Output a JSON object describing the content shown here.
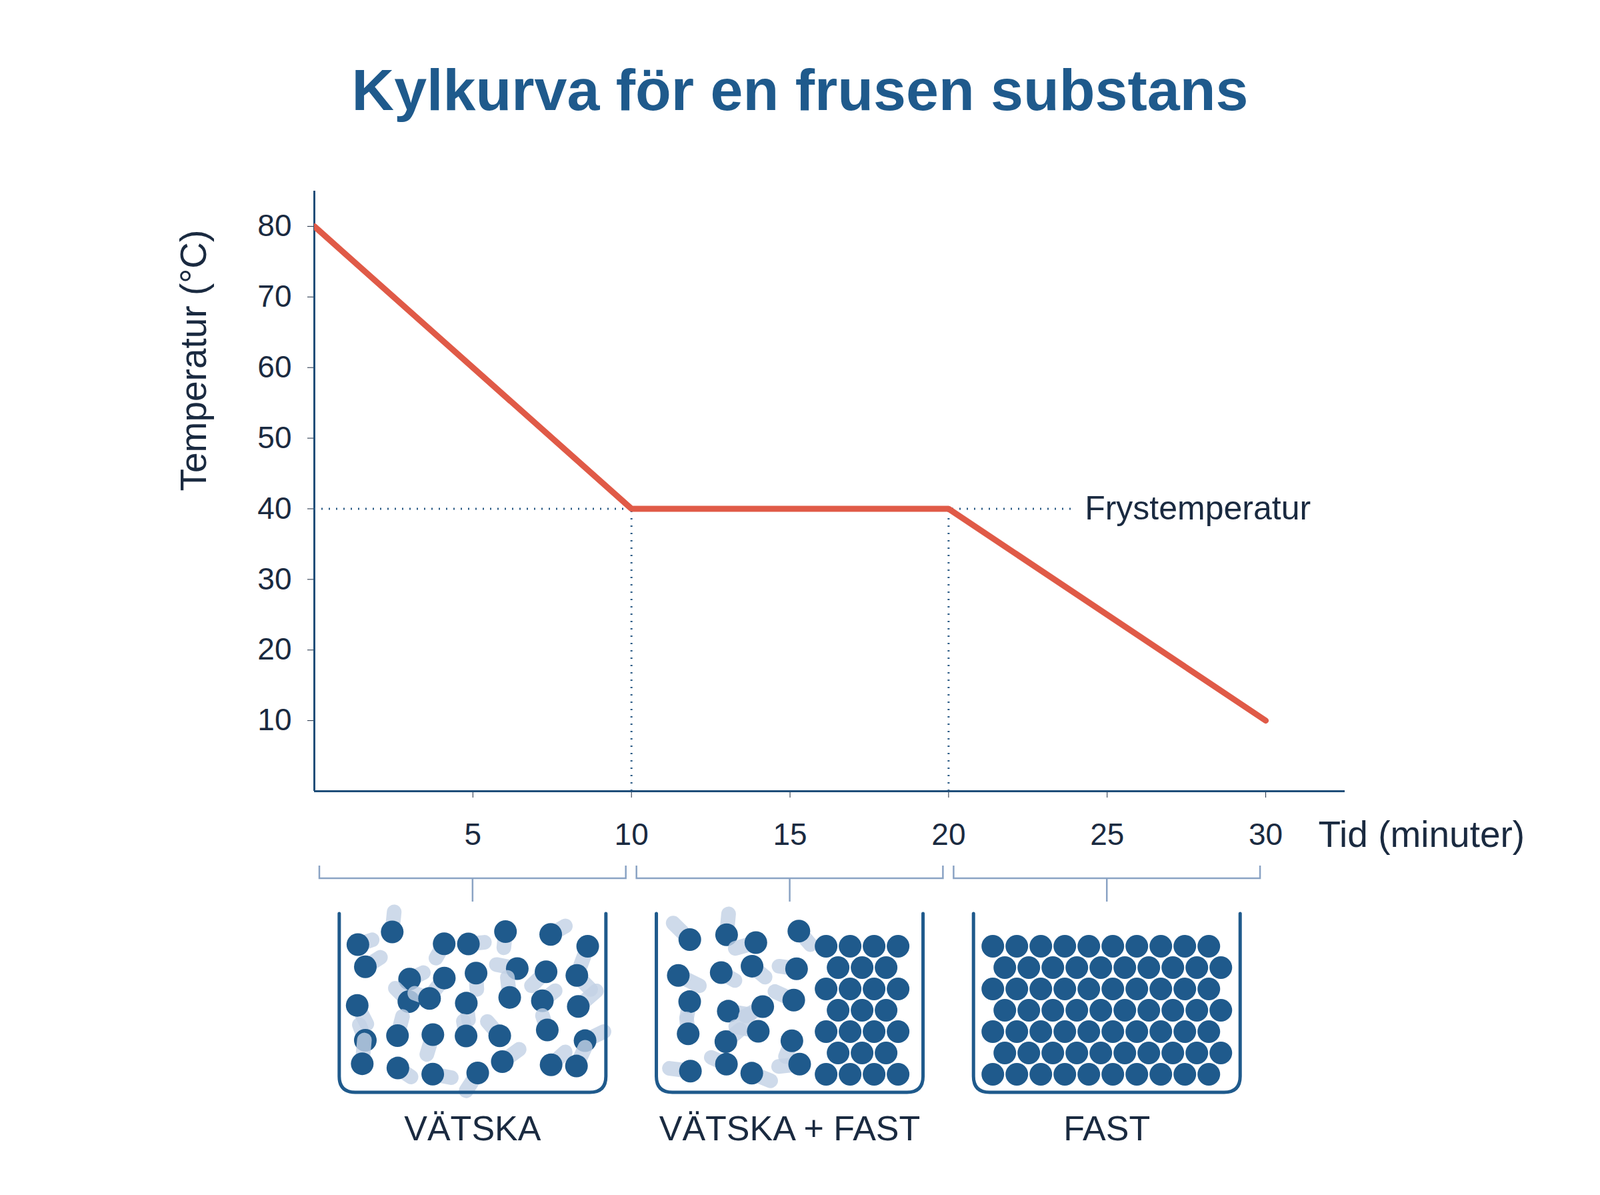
{
  "chart_data": {
    "type": "line",
    "title": "Kylkurva för en frusen substans",
    "x_label": "Tid (minuter)",
    "y_label": "Temperatur (°C)",
    "x": [
      0,
      10,
      20,
      30
    ],
    "values": [
      80,
      40,
      40,
      10
    ],
    "color": "#e05a47",
    "xlim": [
      0,
      32.5
    ],
    "ylim": [
      0,
      85
    ],
    "xticks": [
      5,
      10,
      15,
      20,
      25,
      30
    ],
    "yticks": [
      10,
      20,
      30,
      40,
      50,
      60,
      70,
      80
    ],
    "annotations": [
      {
        "text": "Frystemperatur",
        "x": 24,
        "y": 40
      }
    ],
    "phases": [
      {
        "label": "VÄTSKA",
        "x_range": [
          0,
          10
        ]
      },
      {
        "label": "VÄTSKA + FAST",
        "x_range": [
          10,
          20
        ]
      },
      {
        "label": "FAST",
        "x_range": [
          20,
          30
        ]
      }
    ]
  }
}
